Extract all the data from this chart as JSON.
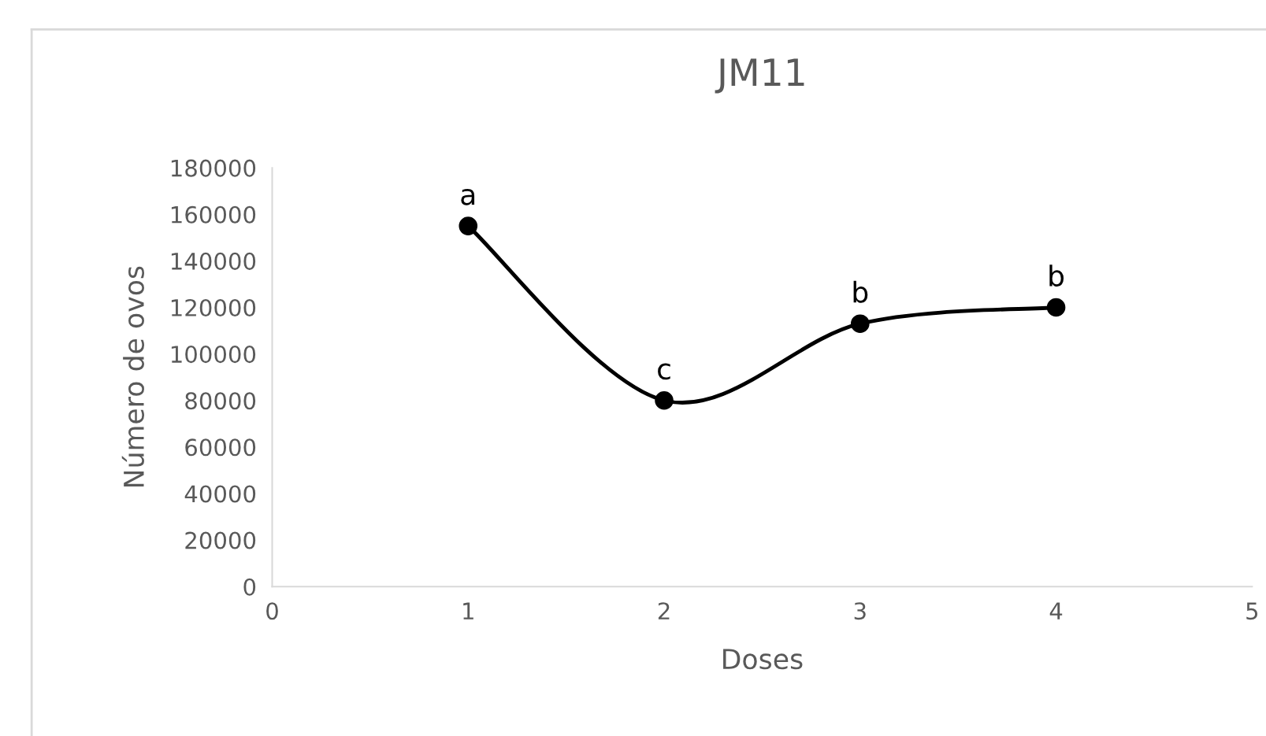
{
  "chart_data": {
    "type": "line",
    "title": "JM11",
    "xlabel": "Doses",
    "ylabel": "Número de ovos",
    "x": [
      1,
      2,
      3,
      4
    ],
    "series": [
      {
        "color": "#000000",
        "values": [
          155000,
          80000,
          113000,
          120000
        ]
      }
    ],
    "xlim": [
      0,
      5
    ],
    "xticks": [
      0,
      1,
      2,
      3,
      4,
      5
    ],
    "ylim": [
      0,
      180000
    ],
    "yticks": [
      0,
      20000,
      40000,
      60000,
      80000,
      100000,
      120000,
      140000,
      160000,
      180000
    ],
    "marker": "circle",
    "line_style": "solid",
    "grid": false,
    "legend": false,
    "annotations": [
      {
        "text": "a",
        "x": 1,
        "y": 155000
      },
      {
        "text": "c",
        "x": 2,
        "y": 80000
      },
      {
        "text": "b",
        "x": 3,
        "y": 113000
      },
      {
        "text": "b",
        "x": 4,
        "y": 120000
      }
    ]
  }
}
